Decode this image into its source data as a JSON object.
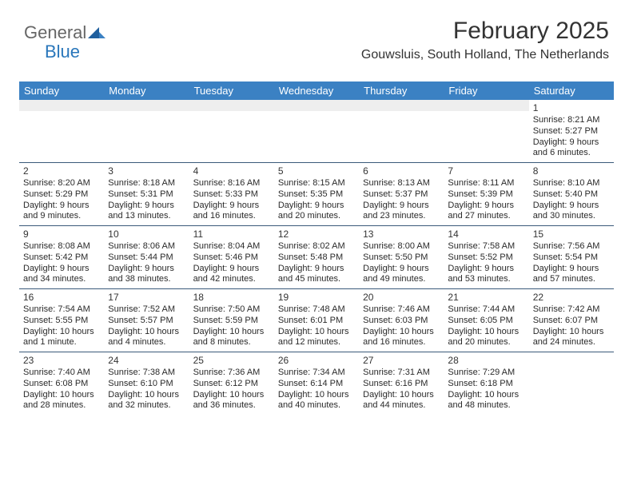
{
  "logo": {
    "text1": "General",
    "text2": "Blue"
  },
  "title": "February 2025",
  "location": "Gouwsluis, South Holland, The Netherlands",
  "dow_bg": "#3b81c3",
  "week_border": "#3a5a7a",
  "dow": [
    "Sunday",
    "Monday",
    "Tuesday",
    "Wednesday",
    "Thursday",
    "Friday",
    "Saturday"
  ],
  "first_day_index": 6,
  "days": [
    {
      "n": 1,
      "sr": "8:21 AM",
      "ss": "5:27 PM",
      "dl": "9 hours and 6 minutes."
    },
    {
      "n": 2,
      "sr": "8:20 AM",
      "ss": "5:29 PM",
      "dl": "9 hours and 9 minutes."
    },
    {
      "n": 3,
      "sr": "8:18 AM",
      "ss": "5:31 PM",
      "dl": "9 hours and 13 minutes."
    },
    {
      "n": 4,
      "sr": "8:16 AM",
      "ss": "5:33 PM",
      "dl": "9 hours and 16 minutes."
    },
    {
      "n": 5,
      "sr": "8:15 AM",
      "ss": "5:35 PM",
      "dl": "9 hours and 20 minutes."
    },
    {
      "n": 6,
      "sr": "8:13 AM",
      "ss": "5:37 PM",
      "dl": "9 hours and 23 minutes."
    },
    {
      "n": 7,
      "sr": "8:11 AM",
      "ss": "5:39 PM",
      "dl": "9 hours and 27 minutes."
    },
    {
      "n": 8,
      "sr": "8:10 AM",
      "ss": "5:40 PM",
      "dl": "9 hours and 30 minutes."
    },
    {
      "n": 9,
      "sr": "8:08 AM",
      "ss": "5:42 PM",
      "dl": "9 hours and 34 minutes."
    },
    {
      "n": 10,
      "sr": "8:06 AM",
      "ss": "5:44 PM",
      "dl": "9 hours and 38 minutes."
    },
    {
      "n": 11,
      "sr": "8:04 AM",
      "ss": "5:46 PM",
      "dl": "9 hours and 42 minutes."
    },
    {
      "n": 12,
      "sr": "8:02 AM",
      "ss": "5:48 PM",
      "dl": "9 hours and 45 minutes."
    },
    {
      "n": 13,
      "sr": "8:00 AM",
      "ss": "5:50 PM",
      "dl": "9 hours and 49 minutes."
    },
    {
      "n": 14,
      "sr": "7:58 AM",
      "ss": "5:52 PM",
      "dl": "9 hours and 53 minutes."
    },
    {
      "n": 15,
      "sr": "7:56 AM",
      "ss": "5:54 PM",
      "dl": "9 hours and 57 minutes."
    },
    {
      "n": 16,
      "sr": "7:54 AM",
      "ss": "5:55 PM",
      "dl": "10 hours and 1 minute."
    },
    {
      "n": 17,
      "sr": "7:52 AM",
      "ss": "5:57 PM",
      "dl": "10 hours and 4 minutes."
    },
    {
      "n": 18,
      "sr": "7:50 AM",
      "ss": "5:59 PM",
      "dl": "10 hours and 8 minutes."
    },
    {
      "n": 19,
      "sr": "7:48 AM",
      "ss": "6:01 PM",
      "dl": "10 hours and 12 minutes."
    },
    {
      "n": 20,
      "sr": "7:46 AM",
      "ss": "6:03 PM",
      "dl": "10 hours and 16 minutes."
    },
    {
      "n": 21,
      "sr": "7:44 AM",
      "ss": "6:05 PM",
      "dl": "10 hours and 20 minutes."
    },
    {
      "n": 22,
      "sr": "7:42 AM",
      "ss": "6:07 PM",
      "dl": "10 hours and 24 minutes."
    },
    {
      "n": 23,
      "sr": "7:40 AM",
      "ss": "6:08 PM",
      "dl": "10 hours and 28 minutes."
    },
    {
      "n": 24,
      "sr": "7:38 AM",
      "ss": "6:10 PM",
      "dl": "10 hours and 32 minutes."
    },
    {
      "n": 25,
      "sr": "7:36 AM",
      "ss": "6:12 PM",
      "dl": "10 hours and 36 minutes."
    },
    {
      "n": 26,
      "sr": "7:34 AM",
      "ss": "6:14 PM",
      "dl": "10 hours and 40 minutes."
    },
    {
      "n": 27,
      "sr": "7:31 AM",
      "ss": "6:16 PM",
      "dl": "10 hours and 44 minutes."
    },
    {
      "n": 28,
      "sr": "7:29 AM",
      "ss": "6:18 PM",
      "dl": "10 hours and 48 minutes."
    }
  ],
  "labels": {
    "sunrise": "Sunrise:",
    "sunset": "Sunset:",
    "daylight": "Daylight:"
  }
}
